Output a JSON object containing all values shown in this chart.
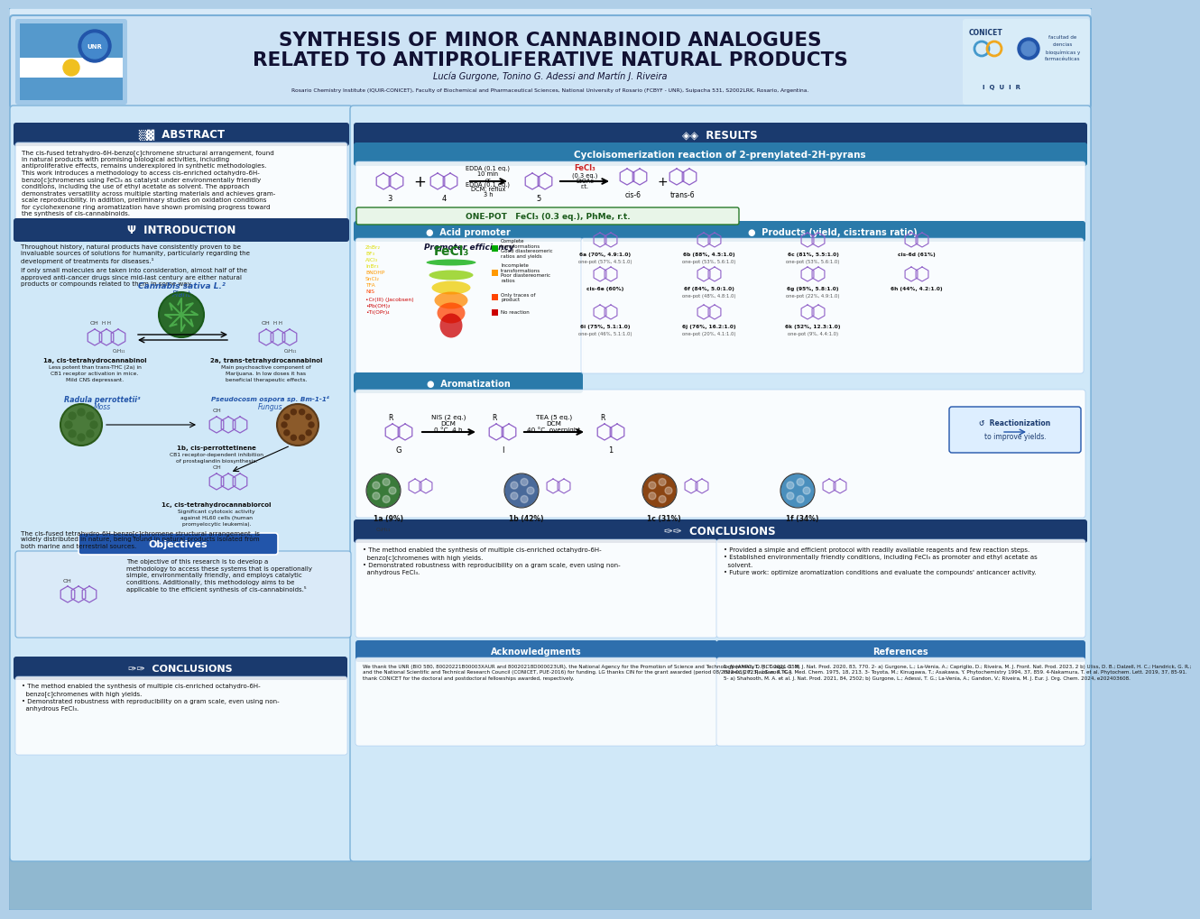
{
  "title_line1": "SYNTHESIS OF MINOR CANNABINOID ANALOGUES",
  "title_line2": "RELATED TO ANTIPROLIFERATIVE NATURAL PRODUCTS",
  "authors": "Lucía Gurgone, Tonino G. Adessi and Martín J. Riveira",
  "affiliation": "Rosario Chemistry Institute (IQUIR-CONICET), Faculty of Biochemical and Pharmaceutical Sciences, National University of Rosario (FCBYF - UNR), Suipacha 531, S2002LRK, Rosario, Argentina.",
  "bg_top": "#c8dff0",
  "bg_main": "#b0cfe8",
  "header_bg": "#4a90c4",
  "dark_blue": "#1a3a6e",
  "medium_blue": "#2e6fad",
  "light_blue": "#daeaf8",
  "panel_bg": "#e4f0fa",
  "white": "#ffffff",
  "section_header_bg": "#1a3a6e",
  "teal_header": "#2a7aaa",
  "abstract_text_lines": [
    "The cis-fused tetrahydro-6H-benzo[c]chromene structural arrangement, found",
    "in natural products with promising biological activities, including",
    "antiproliferative effects, remains underexplored in synthetic methodologies.",
    "This work introduces a methodology to access cis-enriched octahydro-6H-",
    "benzo[c]chromenes using FeCl₃ as catalyst under environmentally friendly",
    "conditions, including the use of ethyl acetate as solvent. The approach",
    "demonstrates versatility across multiple starting materials and achieves gram-",
    "scale reproducibility. In addition, preliminary studies on oxidation conditions",
    "for cyclohexenone ring aromatization have shown promising progress toward",
    "the synthesis of cis-cannabinoids."
  ],
  "intro_text_lines1": [
    "Throughout history, natural products have consistently proven to be",
    "invaluable sources of solutions for humanity, particularly regarding the",
    "development of treatments for diseases.¹"
  ],
  "intro_text_lines2": [
    "If only small molecules are taken into consideration, almost half of the",
    "approved anti-cancer drugs since mid-last century are either natural",
    "products or compounds related to them in some way."
  ],
  "objectives_text_lines": [
    "The objective of this research is to develop a",
    "methodology to access these systems that is operationally",
    "simple, environmentally friendly, and employs catalytic",
    "conditions. Additionally, this methodology aims to be",
    "applicable to the efficient synthesis of cis-cannabinoids.⁵"
  ],
  "conclusions_left": [
    "• The method enabled the synthesis of multiple cis-enriched octahydro-6H-",
    "  benzo[c]chromenes with high yields.",
    "• Demonstrated robustness with reproducibility on a gram scale, even using non-",
    "  anhydrous FeCl₃."
  ],
  "conclusions_right": [
    "• Provided a simple and efficient protocol with readily available reagents and few reaction steps.",
    "• Established environmentally friendly conditions, including FeCl₃ as promoter and ethyl acetate as",
    "  solvent.",
    "• Future work: optimize aromatization conditions and evaluate the compounds' anticancer activity."
  ],
  "ack_lines": [
    "We thank the UNR (BIO 580, 80020221B00003XAUR and 80020218D000023UR), the National Agency for the Promotion of Science and Technology (ANPCyT, PICT-2021-353)",
    "and the National Scientific and Technical Research Council (CONICET, PUE-2016) for funding. LG thanks CIN for the grant awarded (period 08/2022-03/2023). LG and TGA",
    "thank CONICET for the doctoral and postdoctoral fellowships awarded, respectively."
  ],
  "ref_lines": [
    "1- Newman, D. J.; Cragg, G. M. J. Nat. Prod. 2020, 83, 770. 2- a) Gurgone, L.; La-Venia, A.; Capriglio, D.; Riveira, M. J. Front. Nat. Prod. 2023, 2 b) Uliss, D. B.; Dalzell, H. C.; Handrick, G. R.;",
    "Howes, J. F.; Razdan, R. K. J. Med. Chem. 1975, 18, 213. 3- Toyota, M.; Kinugawa, T.; Asakawa, Y. Phytochemistry 1994, 37, 859. 4-Nakamura, T. et al. Phytochem. Lett. 2019, 37, 85-91.",
    "5- a) Shahooth, M. A. et al. J. Nat. Prod. 2021, 84, 2502; b) Gurgone, L.; Adessi, T. G.; La-Venia, A.; Gandon, V.; Riveira, M. J. Eur. J. Org. Chem. 2024, e202403608."
  ],
  "purple": "#9060c8",
  "dark_purple": "#6a0dad",
  "green_fecl3": "#2a8a2a",
  "results_products": [
    [
      "6a (70%, 4.9:1.0)",
      "one-pot (57%, 4.5:1.0)"
    ],
    [
      "6b (88%, 4.5:1.0)",
      "one-pot (53%, 5.6:1.0)"
    ],
    [
      "6c (81%, 5.5:1.0)",
      "one-pot (53%, 5.6:1.0)"
    ],
    [
      "cis-6d (61%)",
      ""
    ],
    [
      "cis-6e (60%)",
      ""
    ],
    [
      "6f (84%, 5.0:1.0)",
      "one-pot (48%, 4.8:1.0)"
    ],
    [
      "6g (95%, 5.8:1.0)",
      "one-pot (22%, 4.9:1.0)"
    ],
    [
      "6h (44%, 4.2:1.0)",
      ""
    ],
    [
      "6i (75%, 5.1:1.0)",
      "one-pot (46%, 5.1:1.0)"
    ],
    [
      "6j (76%, 16.2:1.0)",
      "one-pot (20%, 4.1:1.0)"
    ],
    [
      "6k (52%, 12.3:1.0)",
      "one-pot (9%, 4.4:1.0)"
    ]
  ],
  "arom_products": [
    "1a (9%)",
    "1b (42%)",
    "1c (31%)",
    "1f (34%)"
  ],
  "arom_circle_colors": [
    "#3a7a3a",
    "#4a6a9a",
    "#8b4513",
    "#4a8fbd"
  ]
}
